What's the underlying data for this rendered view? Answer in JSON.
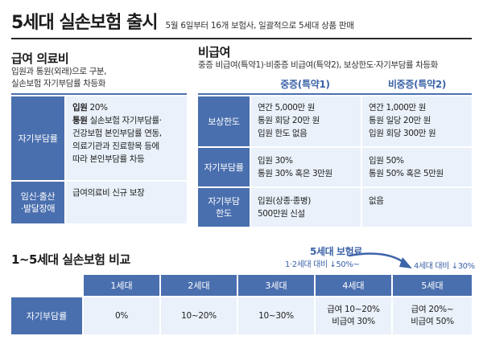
{
  "title": "5세대 실손보험 출시",
  "subtitle": "5월 6일부터 16개 보험사, 일괄적으로 5세대 상품 판매",
  "covered": {
    "heading": "급여 의료비",
    "desc_line1": "입원과 통원(외래)으로 구분,",
    "desc_line2": "실손보험 자기부담률 차등화",
    "rows": [
      {
        "label": "자기부담률",
        "line1_bold": "입원",
        "line1_rest": " 20%",
        "line2_bold": "통원",
        "line2_rest": " 실손보험 자기부담률·",
        "line3": "건강보험 본인부담률 연동,",
        "line4": "의료기관과 진료항목 등에",
        "line5": "따라 본인부담률 차등"
      },
      {
        "label_line1": "임신·출산",
        "label_line2": "·발달장애",
        "value": "급여의료비 신규 보장"
      }
    ]
  },
  "noncovered": {
    "heading": "비급여",
    "desc": "중증 비급여(특약1)·비중증 비급여(특약2), 보상한도·자기부담률 차등화",
    "col1": "중증(특약1)",
    "col2": "비중증(특약2)",
    "rows": [
      {
        "label": "보상한도",
        "c1": [
          "연간 5,000만 원",
          "통원 회당 20만 원",
          "입원 한도 없음"
        ],
        "c2": [
          "연간 1,000만 원",
          "통원 일당 20만 원",
          "입원 회당 300만 원"
        ]
      },
      {
        "label": "자기부담률",
        "c1": [
          "입원 30%",
          "통원 30% 혹은 3만원"
        ],
        "c2": [
          "입원 50%",
          "통원 50% 혹은 5만원"
        ]
      },
      {
        "label_line1": "자기부담",
        "label_line2": "한도",
        "c1": [
          "입원(상종·종병)",
          "500만원 신설"
        ],
        "c2": [
          "없음"
        ]
      }
    ]
  },
  "comparison": {
    "heading": "1~5세대 실손보험 비교",
    "premium_title": "5세대 보험료",
    "premium_note1": "1·2세대 대비 ↓50%~",
    "premium_note2": "4세대 대비 ↓30%",
    "row_label": "자기부담률",
    "headers": [
      "1세대",
      "2세대",
      "3세대",
      "4세대",
      "5세대"
    ],
    "cells": [
      [
        "0%"
      ],
      [
        "10~20%"
      ],
      [
        "10~30%"
      ],
      [
        "급여 10~20%",
        "비급여 30%"
      ],
      [
        "급여 20%~",
        "비급여 50%"
      ]
    ]
  },
  "colors": {
    "accent": "#4a6fae",
    "cell_bg": "#eaf1fa",
    "accent_text": "#3d63a8"
  }
}
